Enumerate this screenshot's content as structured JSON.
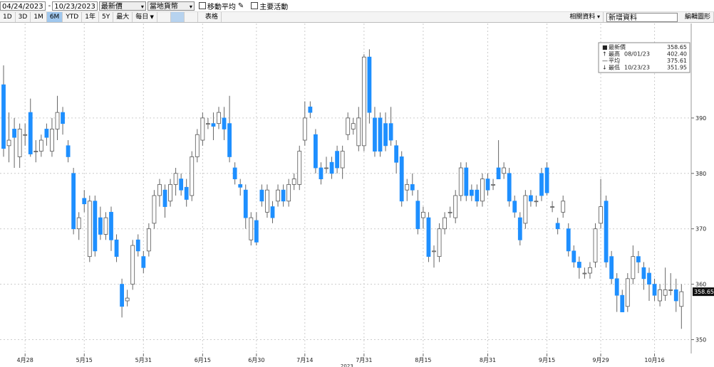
{
  "toolbar": {
    "start_date": "04/24/2023",
    "end_date": "10/23/2023",
    "price_field": "最新價",
    "currency": "當地貨幣",
    "options": [
      "移動平均",
      "主要活動"
    ],
    "periods": [
      "1D",
      "3D",
      "1M",
      "6M",
      "YTD",
      "1年",
      "5Y",
      "最大"
    ],
    "selected_period": "6M",
    "frequency": "每日",
    "table": "表格",
    "related": "相關資料",
    "add_data": "新增資料",
    "edit": "編輯圖形"
  },
  "chart_data": {
    "type": "candlestick",
    "categories": [
      null,
      null,
      null,
      null,
      "4月28",
      null,
      null,
      null,
      null,
      null,
      null,
      null,
      null,
      null,
      null,
      "5月15",
      null,
      null,
      null,
      null,
      null,
      null,
      null,
      null,
      null,
      null,
      "5月31",
      null,
      null,
      null,
      null,
      null,
      null,
      null,
      null,
      null,
      null,
      "6月15",
      null,
      null,
      null,
      null,
      null,
      null,
      null,
      null,
      null,
      "6月30",
      null,
      null,
      null,
      null,
      null,
      null,
      null,
      null,
      "7月14",
      null,
      null,
      null,
      null,
      null,
      null,
      null,
      null,
      null,
      null,
      "7月31",
      null,
      null,
      null,
      null,
      null,
      null,
      null,
      null,
      null,
      null,
      "8月15",
      null,
      null,
      null,
      null,
      null,
      null,
      null,
      null,
      null,
      null,
      null,
      "8月31",
      null,
      null,
      null,
      null,
      null,
      null,
      null,
      null,
      null,
      null,
      "9月15",
      null,
      null,
      null,
      null,
      null,
      null,
      null,
      null,
      null,
      "9月29",
      null,
      null,
      null,
      null,
      null,
      null,
      null,
      null,
      null,
      "10月16",
      null,
      null,
      null,
      null,
      null
    ],
    "year_label": "2023",
    "ohlc": [
      [
        396,
        399.5,
        383,
        384.5
      ],
      [
        385,
        391,
        382,
        386
      ],
      [
        388,
        390,
        381,
        386.5
      ],
      [
        383,
        389,
        381,
        388
      ],
      [
        387,
        389,
        385,
        387
      ],
      [
        391,
        393.5,
        383,
        383.5
      ],
      [
        384,
        386,
        382,
        384
      ],
      [
        384,
        387,
        383,
        386
      ],
      [
        388,
        389,
        385,
        386.5
      ],
      [
        384,
        390,
        383,
        388
      ],
      [
        388,
        394,
        386,
        391
      ],
      [
        391,
        392,
        387,
        389
      ],
      [
        385,
        386,
        382,
        383
      ],
      [
        380,
        381,
        369,
        370
      ],
      [
        370,
        373,
        368,
        372
      ],
      [
        375.5,
        377,
        373,
        374.5
      ],
      [
        365,
        376,
        364,
        375
      ],
      [
        375,
        376,
        365,
        366
      ],
      [
        372,
        374,
        368,
        369
      ],
      [
        369,
        373,
        368,
        372
      ],
      [
        373,
        374,
        366,
        368
      ],
      [
        368,
        369,
        364,
        365
      ],
      [
        360,
        361,
        354,
        356
      ],
      [
        357,
        359,
        356,
        357.5
      ],
      [
        360,
        368,
        359,
        367
      ],
      [
        368,
        369,
        365,
        366
      ],
      [
        365,
        366,
        362,
        363
      ],
      [
        366,
        371,
        365,
        370
      ],
      [
        371,
        377,
        370,
        376
      ],
      [
        376,
        379,
        374,
        378
      ],
      [
        377,
        378,
        372,
        374
      ],
      [
        375,
        379,
        374,
        378
      ],
      [
        378,
        381,
        376,
        380
      ],
      [
        379,
        380,
        376,
        377
      ],
      [
        377.5,
        379,
        374,
        375.3
      ],
      [
        376,
        384,
        375,
        383
      ],
      [
        383,
        388,
        382,
        387
      ],
      [
        386,
        391,
        385,
        390
      ],
      [
        389,
        390,
        388,
        389
      ],
      [
        389,
        391,
        386,
        388.5
      ],
      [
        389,
        392,
        388,
        391
      ],
      [
        390,
        392,
        386,
        388
      ],
      [
        389,
        394,
        382,
        383
      ],
      [
        381,
        382,
        378,
        379
      ],
      [
        378,
        379,
        376,
        377.5
      ],
      [
        377,
        378,
        370,
        372
      ],
      [
        368,
        373,
        367,
        372
      ],
      [
        371.5,
        373,
        367,
        367.6
      ],
      [
        377,
        378,
        374,
        375
      ],
      [
        373,
        378,
        372,
        377
      ],
      [
        374,
        375,
        371,
        372
      ],
      [
        375,
        378,
        374,
        377
      ],
      [
        377,
        378,
        374,
        375
      ],
      [
        375,
        379,
        374,
        378
      ],
      [
        378,
        380,
        377,
        379
      ],
      [
        378,
        385,
        377,
        384
      ],
      [
        386,
        393,
        385,
        390
      ],
      [
        392,
        393,
        390,
        391
      ],
      [
        387,
        388,
        380,
        381
      ],
      [
        381,
        382,
        378,
        379
      ],
      [
        381,
        383,
        380,
        381
      ],
      [
        382,
        383,
        379,
        380
      ],
      [
        384,
        385,
        380,
        381
      ],
      [
        381,
        385,
        379,
        384
      ],
      [
        387,
        391,
        386,
        390
      ],
      [
        388,
        390,
        387,
        389
      ],
      [
        385,
        392,
        384,
        390
      ],
      [
        385,
        401.5,
        384,
        401
      ],
      [
        401,
        402.4,
        389,
        391
      ],
      [
        390,
        392,
        383,
        384
      ],
      [
        390,
        391,
        383,
        384
      ],
      [
        389,
        391,
        384,
        385
      ],
      [
        389,
        392,
        385,
        386
      ],
      [
        385,
        386,
        380,
        382
      ],
      [
        383,
        384,
        374,
        375
      ],
      [
        377,
        379,
        375,
        378
      ],
      [
        378,
        380,
        376,
        377
      ],
      [
        375,
        377,
        369,
        370
      ],
      [
        372,
        374,
        370,
        373
      ],
      [
        372,
        373,
        364,
        365
      ],
      [
        366,
        367,
        363,
        366
      ],
      [
        365,
        371,
        364,
        370
      ],
      [
        370,
        373,
        369,
        372
      ],
      [
        373,
        374,
        372,
        373
      ],
      [
        372,
        377,
        371,
        376
      ],
      [
        376,
        382,
        375,
        381
      ],
      [
        381,
        382,
        375,
        376
      ],
      [
        377,
        378,
        375,
        376
      ],
      [
        377,
        378,
        374,
        375
      ],
      [
        375,
        380,
        374,
        379
      ],
      [
        379,
        380,
        376,
        377
      ],
      [
        378,
        379,
        377,
        378
      ],
      [
        381,
        386,
        379,
        379
      ],
      [
        380,
        382,
        379,
        381
      ],
      [
        380,
        381,
        374,
        375
      ],
      [
        375,
        376,
        372,
        373
      ],
      [
        372,
        373,
        367,
        368
      ],
      [
        371,
        377,
        370,
        376
      ],
      [
        376,
        377,
        374,
        375
      ],
      [
        375,
        376,
        374,
        375
      ],
      [
        380,
        381,
        375,
        376
      ],
      [
        381,
        382,
        376,
        376.5
      ],
      [
        374,
        375,
        373,
        374
      ],
      [
        371,
        372,
        369,
        370
      ],
      [
        373,
        376,
        372,
        375
      ],
      [
        370,
        371,
        365,
        366
      ],
      [
        366,
        367,
        363,
        364
      ],
      [
        364,
        365,
        361,
        363
      ],
      [
        362,
        363,
        361,
        362
      ],
      [
        362,
        364,
        361,
        363
      ],
      [
        364,
        371,
        363,
        370
      ],
      [
        371,
        379,
        370,
        374
      ],
      [
        375,
        376,
        363,
        364
      ],
      [
        365,
        366,
        360,
        361
      ],
      [
        361,
        362,
        355,
        358
      ],
      [
        358,
        359,
        355,
        355
      ],
      [
        356,
        362,
        355,
        361
      ],
      [
        361,
        367,
        360,
        365
      ],
      [
        365,
        366,
        362,
        364
      ],
      [
        363,
        364,
        359,
        361
      ],
      [
        362,
        363,
        357,
        360
      ],
      [
        360,
        361,
        357,
        358
      ],
      [
        357,
        360,
        356,
        359
      ],
      [
        358,
        363,
        357,
        359
      ],
      [
        359,
        362,
        358,
        359
      ],
      [
        359,
        361,
        355,
        357
      ],
      [
        356,
        360,
        351.95,
        358.65
      ]
    ],
    "up_color": "#ffffff",
    "down_color": "#1e8fff",
    "wick_color": "#666666",
    "ylim": [
      347.5,
      406.8
    ],
    "yticks": [
      350,
      360,
      370,
      380,
      390
    ],
    "grid": true,
    "legend": [
      {
        "label": "最新價",
        "value": "358.65"
      },
      {
        "label": "最高",
        "date": "08/01/23",
        "value": "402.40"
      },
      {
        "label": "平均",
        "value": "375.61"
      },
      {
        "label": "最低",
        "date": "10/23/23",
        "value": "351.95"
      }
    ]
  }
}
